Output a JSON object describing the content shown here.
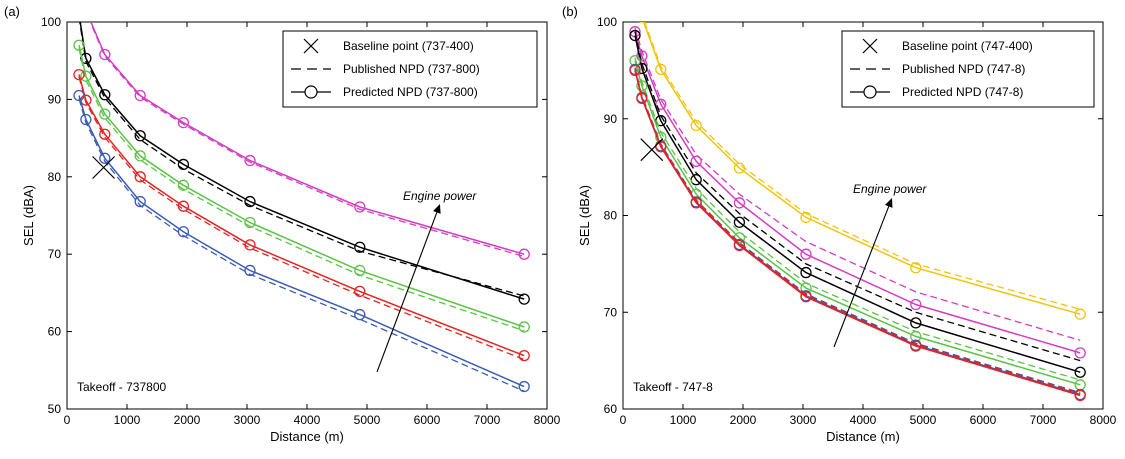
{
  "chart_data": [
    {
      "type": "line",
      "panel_label": "(a)",
      "xlabel": "Distance (m)",
      "ylabel": "SEL (dBA)",
      "xlim": [
        0,
        8000
      ],
      "ylim": [
        50,
        100
      ],
      "xticks": [
        0,
        1000,
        2000,
        3000,
        4000,
        5000,
        6000,
        7000,
        8000
      ],
      "yticks": [
        50,
        60,
        70,
        80,
        90,
        100
      ],
      "grid": false,
      "legend_position": "top-right",
      "legend": [
        {
          "marker": "x",
          "style": "none",
          "label": "Baseline point (737-400)"
        },
        {
          "marker": "none",
          "style": "dashed",
          "label": "Published NPD (737-800)"
        },
        {
          "marker": "circle",
          "style": "solid",
          "label": "Predicted NPD (737-800)"
        }
      ],
      "annotation": "Engine power",
      "corner_text": "Takeoff - 737800",
      "baseline_point": {
        "x": 610,
        "y": 81.2
      },
      "x": [
        200,
        315,
        630,
        1220,
        1940,
        3050,
        4880,
        7620
      ],
      "series": [
        {
          "color": "#d63cc1",
          "predicted": [
            103.5,
            101.5,
            95.8,
            90.5,
            87.0,
            82.1,
            76.1,
            70.0
          ],
          "published": [
            103.3,
            101.3,
            95.6,
            90.3,
            86.8,
            81.9,
            75.8,
            69.7
          ]
        },
        {
          "color": "#000000",
          "predicted": [
            101.0,
            95.3,
            90.6,
            85.3,
            81.6,
            76.8,
            70.9,
            64.2
          ],
          "published": [
            100.6,
            94.9,
            90.2,
            84.8,
            81.0,
            76.3,
            70.4,
            64.6
          ]
        },
        {
          "color": "#5cc346",
          "predicted": [
            97.0,
            93.0,
            88.1,
            82.7,
            78.9,
            74.1,
            67.9,
            60.6
          ],
          "published": [
            96.6,
            92.5,
            87.6,
            82.2,
            78.4,
            73.6,
            67.3,
            60.1
          ]
        },
        {
          "color": "#e52323",
          "predicted": [
            93.2,
            89.9,
            85.5,
            80.0,
            76.2,
            71.2,
            65.2,
            56.9
          ],
          "published": [
            92.9,
            89.6,
            85.1,
            79.6,
            75.8,
            70.8,
            64.7,
            56.4
          ]
        },
        {
          "color": "#3b5cb4",
          "predicted": [
            90.5,
            87.4,
            82.4,
            76.8,
            72.9,
            67.9,
            62.2,
            52.9
          ],
          "published": [
            90.1,
            87.0,
            82.0,
            76.3,
            72.4,
            67.4,
            61.6,
            52.3
          ]
        }
      ]
    },
    {
      "type": "line",
      "panel_label": "(b)",
      "xlabel": "Distance (m)",
      "ylabel": "SEL (dBA)",
      "xlim": [
        0,
        8000
      ],
      "ylim": [
        60,
        100
      ],
      "xticks": [
        0,
        1000,
        2000,
        3000,
        4000,
        5000,
        6000,
        7000,
        8000
      ],
      "yticks": [
        60,
        70,
        80,
        90,
        100
      ],
      "grid": false,
      "legend_position": "top-right",
      "legend": [
        {
          "marker": "x",
          "style": "none",
          "label": "Baseline point (747-400)"
        },
        {
          "marker": "none",
          "style": "dashed",
          "label": "Published NPD (747-8)"
        },
        {
          "marker": "circle",
          "style": "solid",
          "label": "Predicted NPD (747-8)"
        }
      ],
      "annotation": "Engine power",
      "corner_text": "Takeoff - 747-8",
      "baseline_point": {
        "x": 480,
        "y": 86.8
      },
      "x": [
        200,
        315,
        630,
        1220,
        1940,
        3050,
        4880,
        7620
      ],
      "series": [
        {
          "color": "#f1c40f",
          "predicted": [
            103.0,
            100.5,
            95.1,
            89.3,
            84.9,
            79.8,
            74.6,
            69.8
          ],
          "published": [
            103.3,
            100.8,
            95.4,
            89.7,
            85.3,
            80.2,
            75.0,
            70.3
          ]
        },
        {
          "color": "#d63cc1",
          "predicted": [
            99.0,
            96.5,
            91.5,
            85.6,
            81.3,
            76.0,
            70.8,
            65.8
          ],
          "published": [
            99.4,
            97.0,
            92.0,
            86.3,
            82.2,
            77.3,
            72.1,
            67.1
          ]
        },
        {
          "color": "#000000",
          "predicted": [
            98.6,
            95.2,
            89.8,
            83.7,
            79.3,
            74.1,
            68.9,
            63.8
          ],
          "published": [
            99.0,
            95.7,
            90.3,
            84.4,
            80.2,
            75.0,
            70.0,
            65.0
          ]
        },
        {
          "color": "#5cc346",
          "predicted": [
            96.0,
            93.4,
            88.1,
            82.2,
            77.7,
            72.5,
            67.5,
            62.5
          ],
          "published": [
            96.3,
            93.8,
            88.6,
            82.8,
            78.3,
            73.0,
            68.0,
            63.0
          ]
        },
        {
          "color": "#3b5cb4",
          "predicted": [
            95.1,
            92.2,
            87.2,
            81.4,
            77.0,
            71.7,
            66.6,
            61.5
          ],
          "published": [
            95.3,
            92.4,
            87.4,
            81.6,
            77.2,
            71.9,
            66.8,
            61.7
          ]
        },
        {
          "color": "#e52323",
          "predicted": [
            95.0,
            92.1,
            87.1,
            81.3,
            76.9,
            71.6,
            66.5,
            61.4
          ],
          "published": [
            95.2,
            92.3,
            87.3,
            81.5,
            77.1,
            71.8,
            66.7,
            61.6
          ]
        }
      ]
    }
  ]
}
